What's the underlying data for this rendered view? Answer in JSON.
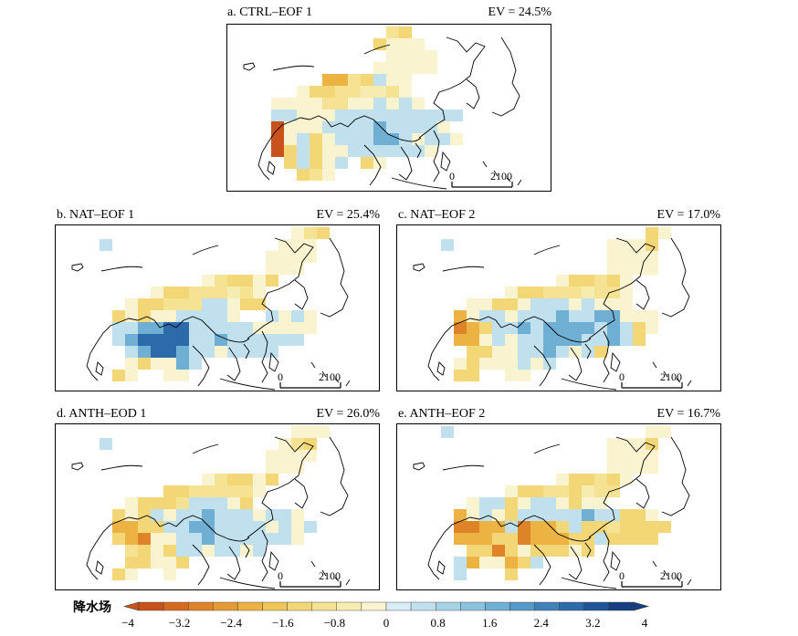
{
  "colorbar": {
    "title": "降水场",
    "min": -4,
    "max": 4,
    "step": 0.4,
    "ticks": [
      "−4",
      "−3.2",
      "−2.4",
      "−1.6",
      "−0.8",
      "0",
      "0.8",
      "1.6",
      "2.4",
      "3.2",
      "4"
    ],
    "colors": [
      "#c8521b",
      "#d5691f",
      "#df8328",
      "#e69a33",
      "#ecb342",
      "#f0c658",
      "#f3d675",
      "#f5e292",
      "#f7ecb0",
      "#f9f3cf",
      "#d8ecf5",
      "#c0e0ee",
      "#a7d2e6",
      "#8bc2dd",
      "#6eafd3",
      "#5499c7",
      "#3f82ba",
      "#2d6aa9",
      "#1f5496",
      "#153f80"
    ]
  },
  "scale_bar": {
    "zero": "0",
    "dist": "2100"
  },
  "chart_data": [
    {
      "type": "heatmap",
      "id": "a",
      "title": "a. CTRL–EOF 1",
      "ev": "EV = 24.5%",
      "grid": [
        "...........23......",
        "..........3+++.....",
        "...........++++....",
        "..........+++++....",
        "......4423-++......",
        "....+3322112+......",
        "..++++22++-+-+.....",
        "..--+++----------..",
        "..6+++----*----+...",
        "..6+-3+---**-+--+..",
        "..63-3++------+....",
        "...3-3+-.3+........",
        "....32+............"
      ]
    },
    {
      "type": "heatmap",
      "id": "b",
      "title": "b. NAT–EOF 1",
      "ev": "EV = 25.4%",
      "grid": [
        ".................+23..",
        "..-.............+++...",
        "...............++++...",
        "...............+++....",
        "..........+233+3......",
        "......+3322212+.......",
        "....+33222--+33.......",
        "...3+3++----+..-+-+...",
        "...--**##-----+++++...",
        "...-*####--*------....",
        "....-*##*--+----......",
        "....+3++*-............",
        "...3+..++.............",
        "......................"
      ]
    },
    {
      "type": "heatmap",
      "id": "c",
      "title": "c. NAT–EOF 2",
      "ev": "EV = 17.0%",
      "grid": [
        "..................3+..",
        "..-............+++3...",
        "...............++++...",
        "...............++++...",
        "...........+3323+.....",
        ".......+33222122+.....",
        "....++33+---+-+++.....",
        "...4+--+---*--**+++...",
        "...543--*-****-*-3+...",
        "...44+-+--***--*-3....",
        "....33++--*-+-3.......",
        "...+3+++-+-...........",
        "...33..++.............",
        "......................"
      ]
    },
    {
      "type": "heatmap",
      "id": "d",
      "title": "d. ANTH–EOD 1",
      "ev": "EV = 26.0%",
      "grid": [
        ".................+++..",
        "..-.............+23...",
        "...............++++...",
        "...............+++....",
        "..........+233+3......",
        ".......3322222+.......",
        "....+3332---+3........",
        "...3+3-+--*---+--+....",
        "...4433--**----+-+-...",
        "...345++--*------+....",
        "....23+3--+--+-.......",
        "....33++3.............",
        "...3+..+..............",
        "......................"
      ]
    },
    {
      "type": "heatmap",
      "id": "e",
      "title": "e. ANTH–EOF 2",
      "ev": "EV = 16.7%",
      "grid": [
        "..-...............++..",
        "...............+++3...",
        "...............++++...",
        "...............++++...",
        "...........+3323+.....",
        ".......+33223122......",
        "....+--3+--+3++.......",
        "...4+-+3-----*--33+...",
        "...5544-5443-3323333..",
        "...44433544433-3333...",
        "....3353+333+3........",
        "...-4++43-............",
        "...-...3..............",
        "......................"
      ]
    }
  ]
}
